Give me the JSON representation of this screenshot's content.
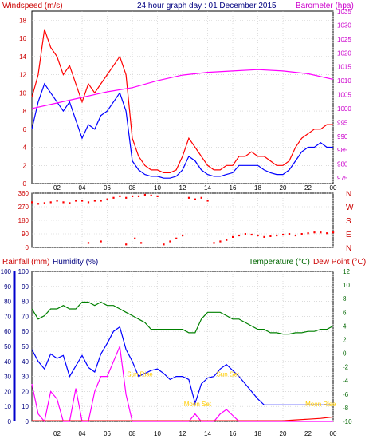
{
  "header": {
    "windspeed_label": "Windspeed (m/s)",
    "title": "24 hour graph day : 01 December 2015",
    "barometer_label": "Barometer (hpa)",
    "rainfall_label": "Rainfall (mm)",
    "humidity_label": "Humidity (%)",
    "temperature_label": "Temperature (°C)",
    "dewpoint_label": "Dew Point (°C)"
  },
  "colors": {
    "background": "#ffffff",
    "grid": "#c8c8c8",
    "wind_gust": "#ff0000",
    "wind_avg": "#0000ff",
    "barometer": "#ff00ff",
    "direction": "#ff0000",
    "rain": "#ff0000",
    "humidity": "#0000ff",
    "temperature": "#008000",
    "solar": "#ff00ff",
    "annotation": "#ffcc00",
    "frame": "#000000"
  },
  "x_ticks": [
    "02",
    "04",
    "06",
    "08",
    "10",
    "12",
    "14",
    "16",
    "18",
    "20",
    "22",
    "00"
  ],
  "chart_data": [
    {
      "type": "line",
      "name": "wind-barometer",
      "x_range": [
        0,
        24
      ],
      "left_axis": {
        "label": "Windspeed (m/s)",
        "range": [
          0,
          19
        ],
        "ticks": [
          0,
          2,
          4,
          6,
          8,
          10,
          12,
          14,
          16,
          18
        ]
      },
      "right_axis": {
        "label": "Barometer (hpa)",
        "range": [
          973,
          1035
        ],
        "ticks": [
          975,
          980,
          985,
          990,
          995,
          1000,
          1005,
          1010,
          1015,
          1020,
          1025,
          1030,
          1035
        ]
      },
      "series": [
        {
          "name": "gust",
          "axis": "left",
          "x": [
            0.0,
            0.5,
            1.0,
            1.5,
            2.0,
            2.5,
            3.0,
            3.5,
            4.0,
            4.5,
            5.0,
            5.5,
            6.0,
            6.5,
            7.0,
            7.5,
            8.0,
            8.5,
            9.0,
            9.5,
            10.0,
            10.5,
            11.0,
            11.5,
            12.0,
            12.5,
            13.0,
            13.5,
            14.0,
            14.5,
            15.0,
            15.5,
            16.0,
            16.5,
            17.0,
            17.5,
            18.0,
            18.5,
            19.0,
            19.5,
            20.0,
            20.5,
            21.0,
            21.5,
            22.0,
            22.5,
            23.0,
            23.5,
            24.0
          ],
          "values": [
            9.5,
            12,
            17,
            15,
            14,
            12,
            13,
            11,
            9,
            11,
            10,
            11,
            12,
            13,
            14,
            12,
            5,
            3,
            2,
            1.5,
            1.5,
            1.2,
            1.2,
            1.5,
            3,
            5,
            4,
            3,
            2,
            1.5,
            1.5,
            2,
            2,
            3,
            3,
            3.5,
            3,
            3,
            2.5,
            2,
            2,
            2.5,
            4,
            5,
            5.5,
            6,
            6,
            6.5,
            6.5
          ]
        },
        {
          "name": "average",
          "axis": "left",
          "x": [
            0.0,
            0.5,
            1.0,
            1.5,
            2.0,
            2.5,
            3.0,
            3.5,
            4.0,
            4.5,
            5.0,
            5.5,
            6.0,
            6.5,
            7.0,
            7.5,
            8.0,
            8.5,
            9.0,
            9.5,
            10.0,
            10.5,
            11.0,
            11.5,
            12.0,
            12.5,
            13.0,
            13.5,
            14.0,
            14.5,
            15.0,
            15.5,
            16.0,
            16.5,
            17.0,
            17.5,
            18.0,
            18.5,
            19.0,
            19.5,
            20.0,
            20.5,
            21.0,
            21.5,
            22.0,
            22.5,
            23.0,
            23.5,
            24.0
          ],
          "values": [
            6,
            9,
            11,
            10,
            9,
            8,
            9,
            7,
            5,
            6.5,
            6,
            7.5,
            8,
            9,
            10,
            8,
            2.5,
            1.5,
            1,
            0.8,
            0.8,
            0.6,
            0.6,
            0.8,
            1.5,
            3,
            2.5,
            1.5,
            1,
            0.8,
            0.8,
            1,
            1.2,
            2,
            2,
            2,
            2,
            1.5,
            1.2,
            1,
            1,
            1.5,
            2.5,
            3.5,
            4,
            4,
            4.5,
            4,
            4
          ]
        },
        {
          "name": "barometer",
          "axis": "right",
          "x": [
            0,
            2,
            4,
            6,
            8,
            10,
            12,
            14,
            16,
            18,
            20,
            22,
            24
          ],
          "values": [
            1000,
            1002,
            1004,
            1006,
            1007.5,
            1010,
            1012,
            1013,
            1013.5,
            1014,
            1013.5,
            1012.5,
            1010.5
          ]
        }
      ]
    },
    {
      "type": "scatter",
      "name": "wind-direction",
      "x_range": [
        0,
        24
      ],
      "y_range": [
        0,
        360
      ],
      "left_ticks": [
        0,
        90,
        180,
        270,
        360
      ],
      "right_labels": [
        "N",
        "W",
        "S",
        "E",
        "N"
      ],
      "series": [
        {
          "name": "direction",
          "x": [
            0.0,
            0.5,
            1.0,
            1.5,
            2.0,
            2.5,
            3.0,
            3.5,
            4.0,
            4.5,
            5.0,
            5.5,
            6.0,
            6.5,
            7.0,
            7.5,
            8.0,
            8.5,
            9.0,
            9.5,
            10.0,
            10.5,
            11.0,
            11.5,
            12.0,
            12.5,
            13.0,
            13.5,
            14.0,
            14.5,
            15.0,
            15.5,
            16.0,
            16.5,
            17.0,
            17.5,
            18.0,
            18.5,
            19.0,
            19.5,
            20.0,
            20.5,
            21.0,
            21.5,
            22.0,
            22.5,
            23.0,
            23.5,
            24.0,
            4.5,
            5.5,
            7.5,
            8.2,
            8.7
          ],
          "values": [
            300,
            290,
            295,
            300,
            310,
            300,
            295,
            310,
            310,
            300,
            310,
            310,
            320,
            330,
            340,
            330,
            340,
            340,
            350,
            345,
            340,
            20,
            40,
            60,
            80,
            330,
            320,
            330,
            310,
            30,
            40,
            50,
            70,
            80,
            90,
            85,
            80,
            70,
            75,
            80,
            85,
            90,
            80,
            90,
            95,
            100,
            100,
            95,
            100,
            30,
            40,
            20,
            60,
            30
          ]
        }
      ]
    },
    {
      "type": "line",
      "name": "rain-humidity-temperature",
      "x_range": [
        0,
        24
      ],
      "left_axis_rain": {
        "label": "Rainfall (mm)",
        "range": [
          0,
          100
        ],
        "ticks": [
          0,
          10,
          20,
          30,
          40,
          50,
          60,
          70,
          80,
          90,
          100
        ]
      },
      "left_axis_humidity": {
        "label": "Humidity (%)",
        "range": [
          0,
          100
        ],
        "ticks": [
          0,
          10,
          20,
          30,
          40,
          50,
          60,
          70,
          80,
          90,
          100
        ]
      },
      "right_axis": {
        "label": "Temperature (°C)",
        "range": [
          -10,
          12
        ],
        "ticks": [
          -10,
          -8,
          -6,
          -4,
          -2,
          0,
          2,
          4,
          6,
          8,
          10,
          12
        ]
      },
      "series": [
        {
          "name": "temperature",
          "axis": "right",
          "x": [
            0.0,
            0.5,
            1.0,
            1.5,
            2.0,
            2.5,
            3.0,
            3.5,
            4.0,
            4.5,
            5.0,
            5.5,
            6.0,
            6.5,
            7.0,
            7.5,
            8.0,
            8.5,
            9.0,
            9.5,
            10.0,
            10.5,
            11.0,
            11.5,
            12.0,
            12.5,
            13.0,
            13.5,
            14.0,
            14.5,
            15.0,
            15.5,
            16.0,
            16.5,
            17.0,
            17.5,
            18.0,
            18.5,
            19.0,
            19.5,
            20.0,
            20.5,
            21.0,
            21.5,
            22.0,
            22.5,
            23.0,
            23.5,
            24.0
          ],
          "values": [
            6.5,
            5,
            5.5,
            6.5,
            6.5,
            7,
            6.5,
            6.5,
            7.5,
            7.5,
            7,
            7.5,
            7,
            7,
            6.5,
            6,
            5.5,
            5,
            4.5,
            3.5,
            3.5,
            3.5,
            3.5,
            3.5,
            3.5,
            3,
            3,
            5,
            6,
            6,
            6,
            5.5,
            5,
            5,
            4.5,
            4,
            3.5,
            3.5,
            3,
            3,
            2.8,
            2.8,
            3,
            3,
            3.2,
            3.2,
            3.5,
            3.5,
            4
          ]
        },
        {
          "name": "humidity",
          "axis": "left",
          "x": [
            0.0,
            0.5,
            1.0,
            1.5,
            2.0,
            2.5,
            3.0,
            3.5,
            4.0,
            4.5,
            5.0,
            5.5,
            6.0,
            6.5,
            7.0,
            7.5,
            8.0,
            8.5,
            9.0,
            9.5,
            10.0,
            10.5,
            11.0,
            11.5,
            12.0,
            12.5,
            13.0,
            13.5,
            14.0,
            14.5,
            15.0,
            15.5,
            16.0,
            16.5,
            17.0,
            17.5,
            18.0,
            18.5,
            19.0,
            19.5,
            20.0,
            20.5,
            21.0,
            21.5,
            22.0,
            22.5,
            23.0,
            23.5,
            24.0
          ],
          "values": [
            48,
            40,
            35,
            45,
            42,
            44,
            30,
            37,
            44,
            36,
            33,
            45,
            52,
            60,
            63,
            48,
            40,
            30,
            32,
            34,
            35,
            32,
            28,
            30,
            30,
            28,
            12,
            25,
            29,
            30,
            35,
            38,
            34,
            30,
            25,
            20,
            15,
            11,
            11,
            11,
            11,
            11,
            11,
            11,
            11,
            11,
            11,
            11,
            11
          ]
        },
        {
          "name": "solar",
          "axis": "left",
          "x": [
            0.0,
            0.5,
            1.0,
            1.5,
            2.0,
            2.5,
            3.0,
            3.5,
            4.0,
            4.5,
            5.0,
            5.5,
            6.0,
            6.5,
            7.0,
            7.5,
            8.0,
            8.5,
            9.0,
            9.5,
            10.0,
            10.5,
            11.0,
            11.5,
            12.0,
            12.5,
            13.0,
            13.5,
            14.0,
            14.5,
            15.0,
            15.5,
            16.0,
            16.5,
            17.0,
            17.5,
            18.0,
            18.5,
            19.0,
            19.5,
            20.0,
            20.5,
            21.0,
            21.5,
            22.0,
            22.5,
            23.0,
            23.5,
            24.0
          ],
          "values": [
            25,
            5,
            0,
            20,
            15,
            0,
            0,
            22,
            0,
            0,
            20,
            30,
            30,
            40,
            50,
            18,
            0,
            0,
            0,
            0,
            0,
            0,
            0,
            0,
            0,
            0,
            5,
            0,
            0,
            0,
            5,
            8,
            4,
            0,
            0,
            0,
            0,
            0,
            0,
            0,
            0,
            0,
            0,
            0,
            0,
            0,
            0,
            0,
            0
          ]
        },
        {
          "name": "rainfall",
          "axis": "left",
          "x": [
            0,
            8.6,
            12,
            20,
            21,
            22,
            23,
            24
          ],
          "values": [
            0.5,
            0.5,
            0.5,
            0.5,
            1,
            1.5,
            2,
            3
          ]
        }
      ],
      "annotations": [
        {
          "text": "Sun Rise",
          "x": 8.6,
          "y": 30
        },
        {
          "text": "Moon Set",
          "x": 13.2,
          "y": 10
        },
        {
          "text": "Sun Set",
          "x": 15.6,
          "y": 30
        },
        {
          "text": "Moon Rise",
          "x": 23.0,
          "y": 10
        }
      ]
    }
  ]
}
